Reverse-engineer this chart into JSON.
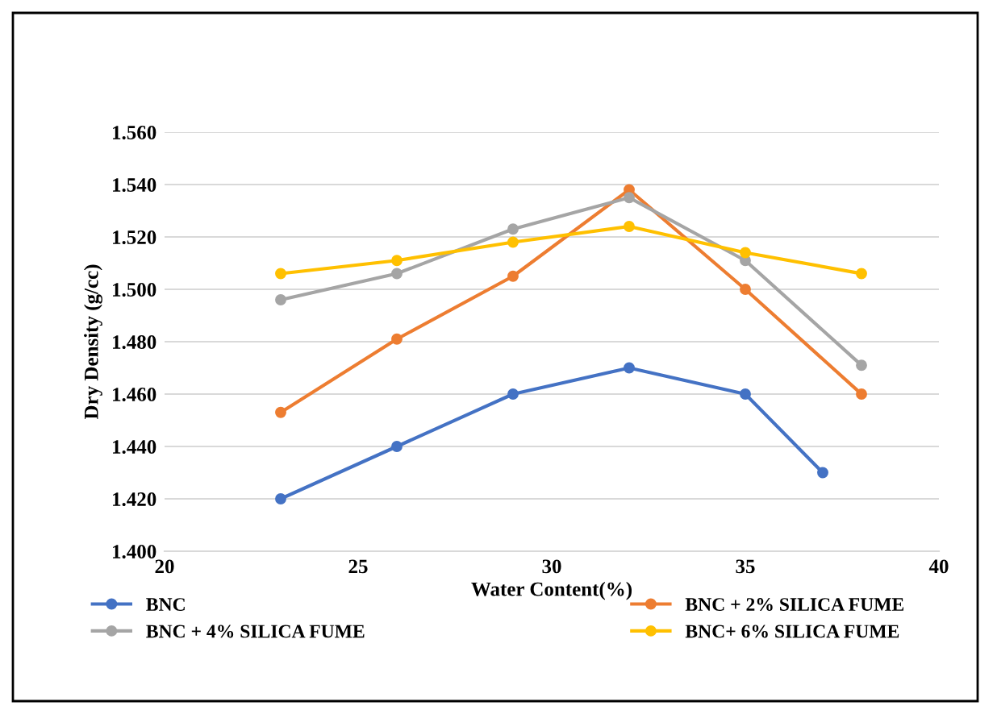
{
  "chart_data": {
    "type": "line",
    "xlabel": "Water Content(%)",
    "ylabel": "Dry Density (g/cc)",
    "xlim": [
      20,
      40
    ],
    "xticks": [
      20,
      25,
      30,
      35,
      40
    ],
    "ylim": [
      1.4,
      1.56
    ],
    "yticks": [
      {
        "value": 1.4,
        "label": "1.400"
      },
      {
        "value": 1.42,
        "label": "1.420"
      },
      {
        "value": 1.44,
        "label": "1.440"
      },
      {
        "value": 1.46,
        "label": "1.460"
      },
      {
        "value": 1.48,
        "label": "1.480"
      },
      {
        "value": 1.5,
        "label": "1.500"
      },
      {
        "value": 1.52,
        "label": "1.520"
      },
      {
        "value": 1.54,
        "label": "1.540"
      },
      {
        "value": 1.56,
        "label": "1.560"
      }
    ],
    "grid": "y",
    "legend": "bottom",
    "marker": "circle",
    "line_style": "solid",
    "series": [
      {
        "name": "BNC",
        "color": "#4472c4",
        "x": [
          23,
          26,
          29,
          32,
          35,
          37
        ],
        "values": [
          1.42,
          1.44,
          1.46,
          1.47,
          1.46,
          1.43
        ]
      },
      {
        "name": "BNC + 2% SILICA FUME",
        "color": "#ed7d31",
        "x": [
          23,
          26,
          29,
          32,
          35,
          38
        ],
        "values": [
          1.453,
          1.481,
          1.505,
          1.538,
          1.5,
          1.46
        ]
      },
      {
        "name": "BNC + 4% SILICA FUME",
        "color": "#a5a5a5",
        "x": [
          23,
          26,
          29,
          32,
          35,
          38
        ],
        "values": [
          1.496,
          1.506,
          1.523,
          1.535,
          1.511,
          1.471
        ]
      },
      {
        "name": "BNC+ 6% SILICA FUME",
        "color": "#ffc000",
        "x": [
          23,
          26,
          29,
          32,
          35,
          38
        ],
        "values": [
          1.506,
          1.511,
          1.518,
          1.524,
          1.514,
          1.506
        ]
      }
    ]
  }
}
